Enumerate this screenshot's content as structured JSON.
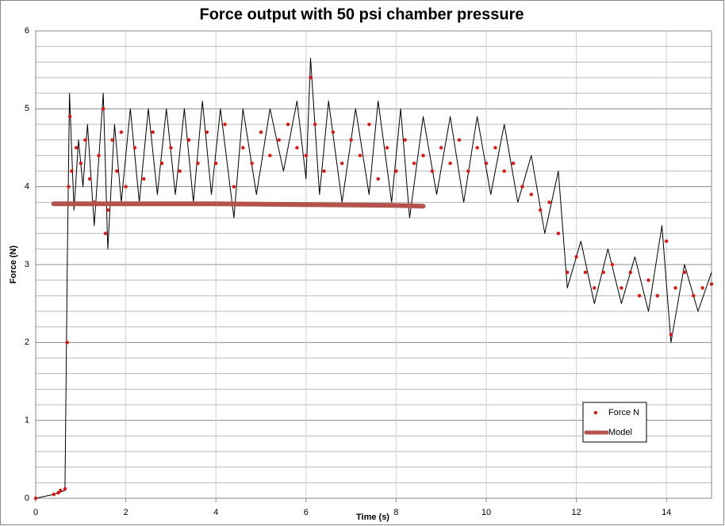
{
  "chart_data": {
    "type": "line",
    "title": "Force output with 50 psi chamber pressure",
    "x_label": "Time (s)",
    "y_label": "Force (N)",
    "xlim": [
      0,
      15
    ],
    "ylim": [
      0,
      6
    ],
    "xticks": [
      0,
      2,
      4,
      6,
      8,
      10,
      12,
      14
    ],
    "yticks": [
      0,
      1,
      2,
      3,
      4,
      5,
      6
    ],
    "minor_yticks": [
      0.2,
      0.4,
      0.6,
      0.8,
      1.2,
      1.4,
      1.6,
      1.8,
      2.2,
      2.4,
      2.6,
      2.8,
      3.2,
      3.4,
      3.6,
      3.8,
      4.2,
      4.4,
      4.6,
      4.8,
      5.2,
      5.4,
      5.6,
      5.8
    ],
    "grid": true,
    "legend": "lower right",
    "series": [
      {
        "color": "#000000",
        "mode": "line",
        "x": [
          0,
          0.4,
          0.65,
          0.7,
          0.75,
          0.85,
          0.95,
          1.05,
          1.15,
          1.3,
          1.5,
          1.6,
          1.75,
          1.9,
          2.1,
          2.3,
          2.5,
          2.7,
          2.9,
          3.1,
          3.3,
          3.5,
          3.7,
          3.9,
          4.1,
          4.4,
          4.6,
          4.9,
          5.2,
          5.5,
          5.8,
          6.0,
          6.1,
          6.3,
          6.5,
          6.8,
          7.1,
          7.4,
          7.6,
          7.9,
          8.1,
          8.3,
          8.6,
          8.9,
          9.2,
          9.5,
          9.8,
          10.1,
          10.4,
          10.7,
          11.0,
          11.3,
          11.6,
          11.8,
          12.1,
          12.4,
          12.7,
          13.0,
          13.3,
          13.6,
          13.9,
          14.1,
          14.4,
          14.7,
          15.0
        ],
        "values": [
          0,
          0.05,
          0.1,
          3,
          5.2,
          3.7,
          4.6,
          4.0,
          4.8,
          3.5,
          5.2,
          3.2,
          4.8,
          3.8,
          5.0,
          3.8,
          5.0,
          3.9,
          5.0,
          3.9,
          5.0,
          3.8,
          5.1,
          3.9,
          5.0,
          3.6,
          5.0,
          3.9,
          5.0,
          4.2,
          5.1,
          4.1,
          5.65,
          3.9,
          5.1,
          3.8,
          5.0,
          3.9,
          5.1,
          3.8,
          5.0,
          3.6,
          4.9,
          3.9,
          4.9,
          3.8,
          4.9,
          3.9,
          4.8,
          3.8,
          4.4,
          3.4,
          4.2,
          2.7,
          3.3,
          2.5,
          3.2,
          2.5,
          3.1,
          2.4,
          3.5,
          2.0,
          3.0,
          2.4,
          2.9
        ]
      },
      {
        "name": "Force N",
        "color": "#e0130f",
        "mode": "markers",
        "x": [
          0,
          0.4,
          0.5,
          0.55,
          0.65,
          0.7,
          0.73,
          0.76,
          0.8,
          0.9,
          1.0,
          1.1,
          1.2,
          1.3,
          1.4,
          1.5,
          1.55,
          1.6,
          1.7,
          1.8,
          1.9,
          2.0,
          2.2,
          2.4,
          2.6,
          2.8,
          3.0,
          3.2,
          3.4,
          3.6,
          3.8,
          4.0,
          4.2,
          4.4,
          4.6,
          4.8,
          5.0,
          5.2,
          5.4,
          5.6,
          5.8,
          6.0,
          6.1,
          6.2,
          6.4,
          6.6,
          6.8,
          7.0,
          7.2,
          7.4,
          7.6,
          7.8,
          8.0,
          8.2,
          8.4,
          8.6,
          8.8,
          9.0,
          9.2,
          9.4,
          9.6,
          9.8,
          10.0,
          10.2,
          10.4,
          10.6,
          10.8,
          11.0,
          11.2,
          11.4,
          11.6,
          11.8,
          12.0,
          12.2,
          12.4,
          12.6,
          12.8,
          13.0,
          13.2,
          13.4,
          13.6,
          13.8,
          14.0,
          14.1,
          14.2,
          14.4,
          14.6,
          14.8,
          15.0
        ],
        "values": [
          0,
          0.05,
          0.07,
          0.1,
          0.12,
          2,
          4,
          4.9,
          4.2,
          4.5,
          4.3,
          4.6,
          4.1,
          3.8,
          4.4,
          5.0,
          3.4,
          3.7,
          4.6,
          4.2,
          4.7,
          4.0,
          4.5,
          4.1,
          4.7,
          4.3,
          4.5,
          4.2,
          4.6,
          4.3,
          4.7,
          4.3,
          4.8,
          4.0,
          4.5,
          4.3,
          4.7,
          4.4,
          4.6,
          4.8,
          4.5,
          4.4,
          5.4,
          4.8,
          4.2,
          4.7,
          4.3,
          4.6,
          4.4,
          4.8,
          4.1,
          4.5,
          4.2,
          4.6,
          4.3,
          4.4,
          4.2,
          4.5,
          4.3,
          4.6,
          4.2,
          4.5,
          4.3,
          4.5,
          4.2,
          4.3,
          4.0,
          3.9,
          3.7,
          3.8,
          3.4,
          2.9,
          3.1,
          2.9,
          2.7,
          2.9,
          3.0,
          2.7,
          2.9,
          2.6,
          2.8,
          2.6,
          3.3,
          2.1,
          2.7,
          2.9,
          2.6,
          2.7,
          2.75
        ]
      },
      {
        "name": "Model",
        "color": "#b5524c",
        "mode": "line-thick",
        "x": [
          0.4,
          4,
          8,
          8.6
        ],
        "values": [
          3.78,
          3.78,
          3.76,
          3.75
        ]
      }
    ]
  }
}
